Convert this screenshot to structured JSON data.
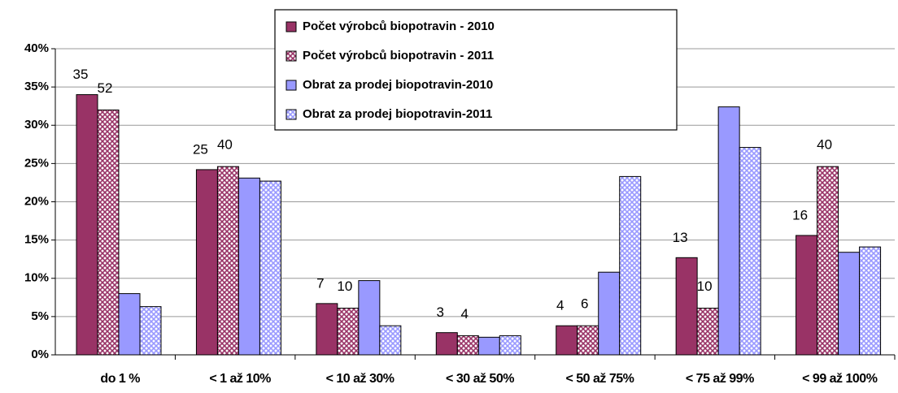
{
  "chart_data": {
    "type": "bar",
    "categories": [
      "do 1 %",
      "< 1 až 10%",
      "< 10 až 30%",
      "< 30 až 50%",
      "< 50 až 75%",
      "< 75 až 99%",
      "< 99 až 100%"
    ],
    "series": [
      {
        "name": "Počet výrobců biopotravin - 2010",
        "color": "#993366",
        "pattern": false,
        "values": [
          34.0,
          24.2,
          6.7,
          2.9,
          3.8,
          12.7,
          15.6
        ],
        "annotations": [
          35,
          25,
          7,
          3,
          4,
          13,
          16
        ]
      },
      {
        "name": "Počet výrobců biopotravin - 2011",
        "color": "#993366",
        "pattern": true,
        "values": [
          32.0,
          24.6,
          6.1,
          2.5,
          3.8,
          6.1,
          24.6
        ],
        "annotations": [
          52,
          40,
          10,
          4,
          6,
          10,
          40
        ]
      },
      {
        "name": "Obrat za prodej biopotravin-2010",
        "color": "#9999ff",
        "pattern": false,
        "values": [
          8.0,
          23.1,
          9.7,
          2.3,
          10.8,
          32.4,
          13.4
        ]
      },
      {
        "name": "Obrat za prodej biopotravin-2011",
        "color": "#9999ff",
        "pattern": true,
        "values": [
          6.3,
          22.7,
          3.8,
          2.5,
          23.3,
          27.1,
          14.1
        ]
      }
    ],
    "ylim": [
      0,
      40
    ],
    "yticks": [
      {
        "value": 0,
        "label": "0%"
      },
      {
        "value": 5,
        "label": "5%"
      },
      {
        "value": 10,
        "label": "10%"
      },
      {
        "value": 15,
        "label": "15%"
      },
      {
        "value": 20,
        "label": "20%"
      },
      {
        "value": 25,
        "label": "25%"
      },
      {
        "value": 30,
        "label": "30%"
      },
      {
        "value": 35,
        "label": "35%"
      },
      {
        "value": 40,
        "label": "40%"
      }
    ],
    "grid": true
  }
}
